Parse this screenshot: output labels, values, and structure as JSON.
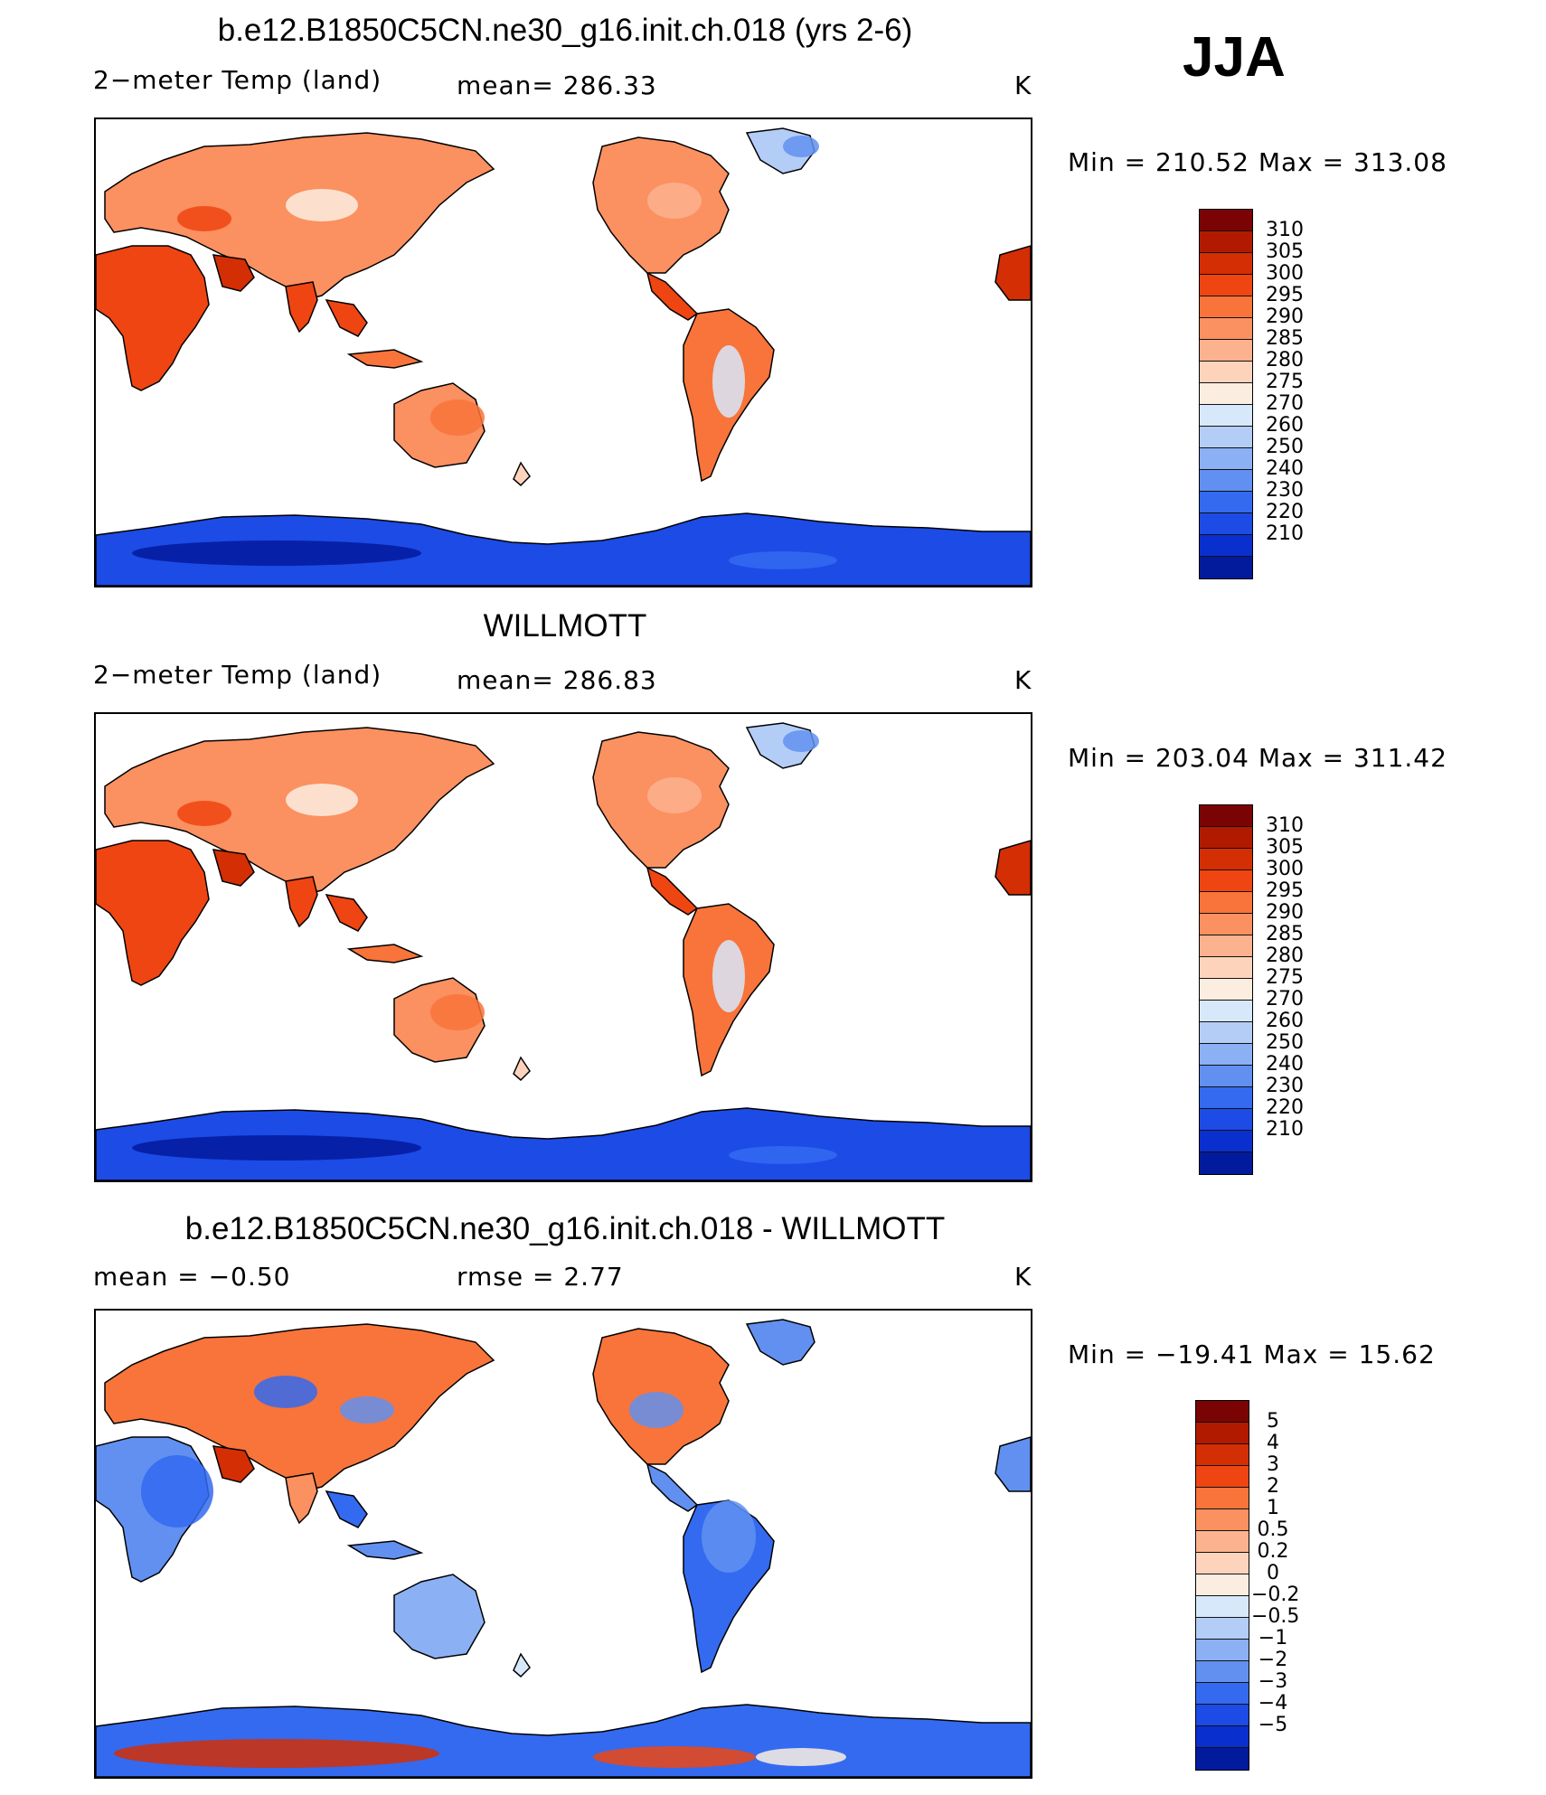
{
  "season": "JJA",
  "panels": [
    {
      "title": "b.e12.B1850C5CN.ne30_g16.init.ch.018 (yrs 2-6)",
      "left_label": "2−meter Temp (land)",
      "center_label": "mean=  286.33",
      "units": "K",
      "minmax": "Min  =  210.52  Max  =  313.08",
      "kind": "temp"
    },
    {
      "title": "WILLMOTT",
      "left_label": "2−meter Temp (land)",
      "center_label": "mean=  286.83",
      "units": "K",
      "minmax": "Min  =  203.04  Max  =  311.42",
      "kind": "temp"
    },
    {
      "title": "b.e12.B1850C5CN.ne30_g16.init.ch.018 - WILLMOTT",
      "left_label": "mean  =    −0.50",
      "center_label": "rmse  =     2.77",
      "units": "K",
      "minmax": "Min  =  −19.41  Max  =    15.62",
      "kind": "diff"
    }
  ],
  "colorbars": {
    "temp": {
      "labels": [
        "310",
        "305",
        "300",
        "295",
        "290",
        "285",
        "280",
        "275",
        "270",
        "260",
        "250",
        "240",
        "230",
        "220",
        "210"
      ],
      "colors": [
        "#7a0403",
        "#b21a00",
        "#d42e05",
        "#ef4512",
        "#f8743a",
        "#fb9060",
        "#fdb28f",
        "#fdd3bc",
        "#fbeee0",
        "#d8e8fb",
        "#b3cdf7",
        "#8cb0f4",
        "#6190f0",
        "#336af0",
        "#1c4be6",
        "#0a2fcf",
        "#021a9c"
      ]
    },
    "diff": {
      "labels": [
        "5",
        "4",
        "3",
        "2",
        "1",
        "0.5",
        "0.2",
        "0",
        "−0.2",
        "−0.5",
        "−1",
        "−2",
        "−3",
        "−4",
        "−5"
      ],
      "colors": [
        "#7a0403",
        "#b21a00",
        "#d42e05",
        "#ef4512",
        "#f8743a",
        "#fb9060",
        "#fdb28f",
        "#fdd3bc",
        "#fbeee0",
        "#d8e8fb",
        "#b3cdf7",
        "#8cb0f4",
        "#6190f0",
        "#336af0",
        "#1c4be6",
        "#0a2fcf",
        "#021a9c"
      ]
    }
  }
}
